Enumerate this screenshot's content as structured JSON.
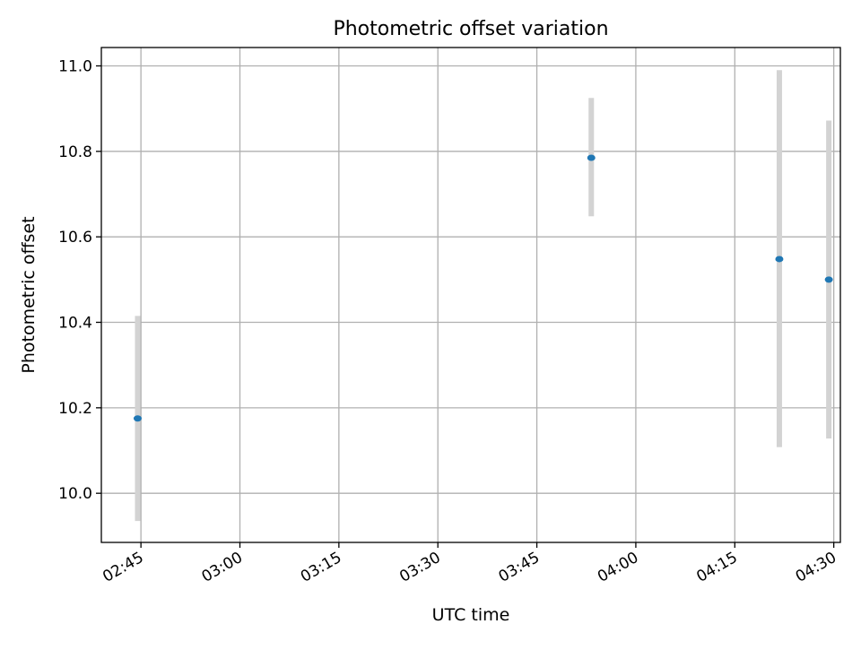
{
  "chart_data": {
    "type": "scatter",
    "title": "Photometric offset variation",
    "xlabel": "UTC time",
    "ylabel": "Photometric offset",
    "x_axis": {
      "type": "time",
      "range": [
        "02:39",
        "04:31"
      ],
      "ticks": [
        "02:45",
        "03:00",
        "03:15",
        "03:30",
        "03:45",
        "04:00",
        "04:15",
        "04:30"
      ]
    },
    "y_axis": {
      "range": [
        9.885,
        11.043
      ],
      "ticks": [
        "10.0",
        "10.2",
        "10.4",
        "10.6",
        "10.8",
        "11.0"
      ]
    },
    "grid": true,
    "points": [
      {
        "x": "02:44:30",
        "y": 10.175,
        "err_low": 9.935,
        "err_high": 10.415
      },
      {
        "x": "03:53:15",
        "y": 10.785,
        "err_low": 10.648,
        "err_high": 10.925
      },
      {
        "x": "04:21:45",
        "y": 10.548,
        "err_low": 10.108,
        "err_high": 10.99
      },
      {
        "x": "04:29:15",
        "y": 10.5,
        "err_low": 10.128,
        "err_high": 10.872
      }
    ],
    "colors": {
      "marker": "#1f77b4",
      "errorbar": "#d3d3d3",
      "grid": "#b0b0b0"
    }
  }
}
